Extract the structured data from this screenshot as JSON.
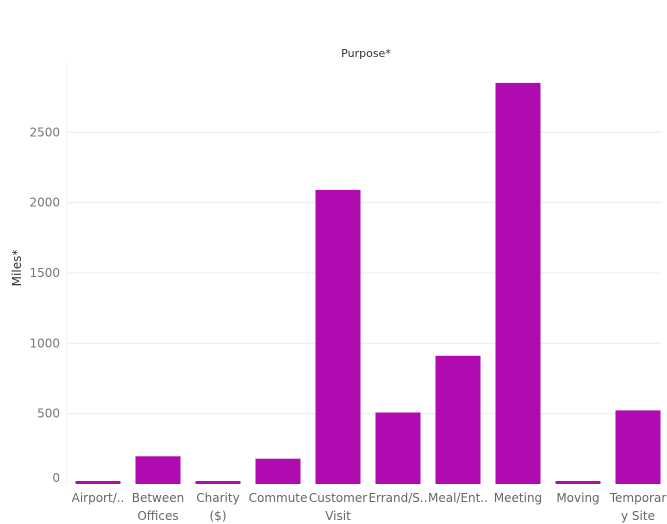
{
  "chart_data": {
    "type": "bar",
    "title": "Purpose*",
    "xlabel": "",
    "ylabel": "Miles*",
    "categories": [
      [
        "Airport/.."
      ],
      [
        "Between",
        "Offices"
      ],
      [
        "Charity",
        "($)"
      ],
      [
        "Commute"
      ],
      [
        "Customer",
        "Visit"
      ],
      [
        "Errand/S.."
      ],
      [
        "Meal/Ent.."
      ],
      [
        "Meeting"
      ],
      [
        "Moving"
      ],
      [
        "Temporar",
        "y Site"
      ]
    ],
    "values": [
      16,
      197,
      16,
      180,
      2090,
      508,
      911,
      2851,
      19,
      523
    ],
    "yticks": [
      0,
      500,
      1000,
      1500,
      2000,
      2500
    ],
    "ylim": [
      0,
      2950
    ],
    "grid": true,
    "bar_color": "#b00bb0"
  }
}
